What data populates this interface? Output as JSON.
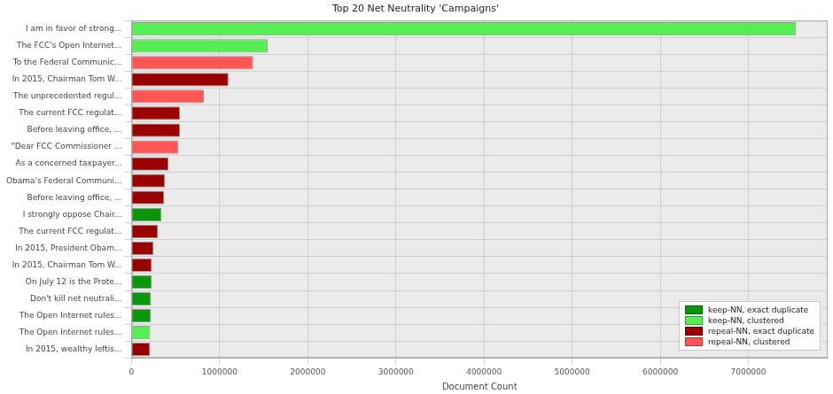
{
  "chart_data": {
    "type": "bar",
    "orientation": "horizontal",
    "title": "Top 20 Net Neutrality 'Campaigns'",
    "x_label": "Document Count",
    "categories": [
      "I am in favor of strong...",
      "The FCC's Open Internet...",
      "To the Federal Communic...",
      "In 2015, Chairman Tom W...",
      "The unprecedented regul...",
      "The current FCC regulat...",
      "Before leaving office, ...",
      "\"Dear FCC Commissioner ...",
      "As a concerned taxpayer...",
      "Obama's Federal Communi...",
      "Before leaving office, ...",
      "I strongly oppose Chair...",
      "The current FCC regulat...",
      "In 2015, President Obam...",
      "In 2015, Chairman Tom W...",
      "On July 12 is the Prote...",
      "Don't kill net neutrali...",
      "The Open Internet rules...",
      "The Open Internet rules...",
      "In 2015, wealthy leftis..."
    ],
    "series": [
      {
        "name": "keep-NN, exact duplicate",
        "color": "#0a960a",
        "values": [
          null,
          null,
          null,
          null,
          null,
          null,
          null,
          null,
          null,
          null,
          null,
          340000,
          null,
          null,
          null,
          230000,
          220000,
          220000,
          null,
          null
        ]
      },
      {
        "name": "keep-NN, clustered",
        "color": "#55ee55",
        "values": [
          7540000,
          1545000,
          null,
          null,
          null,
          null,
          null,
          null,
          null,
          null,
          null,
          null,
          null,
          null,
          null,
          null,
          null,
          null,
          210000,
          null
        ]
      },
      {
        "name": "repeal-NN, exact duplicate",
        "color": "#990000",
        "values": [
          null,
          null,
          null,
          1100000,
          null,
          550000,
          550000,
          null,
          420000,
          380000,
          370000,
          null,
          300000,
          250000,
          230000,
          null,
          null,
          null,
          null,
          210000
        ]
      },
      {
        "name": "repeal-NN, clustered",
        "color": "#ff5555",
        "values": [
          null,
          null,
          1380000,
          null,
          820000,
          null,
          null,
          530000,
          null,
          null,
          null,
          null,
          null,
          null,
          null,
          null,
          null,
          null,
          null,
          null
        ]
      }
    ],
    "stacked": true,
    "xlim": [
      0,
      7900000
    ],
    "xticks": [
      0,
      1000000,
      2000000,
      3000000,
      4000000,
      5000000,
      6000000,
      7000000
    ],
    "grid": true,
    "legend": "lower right"
  }
}
